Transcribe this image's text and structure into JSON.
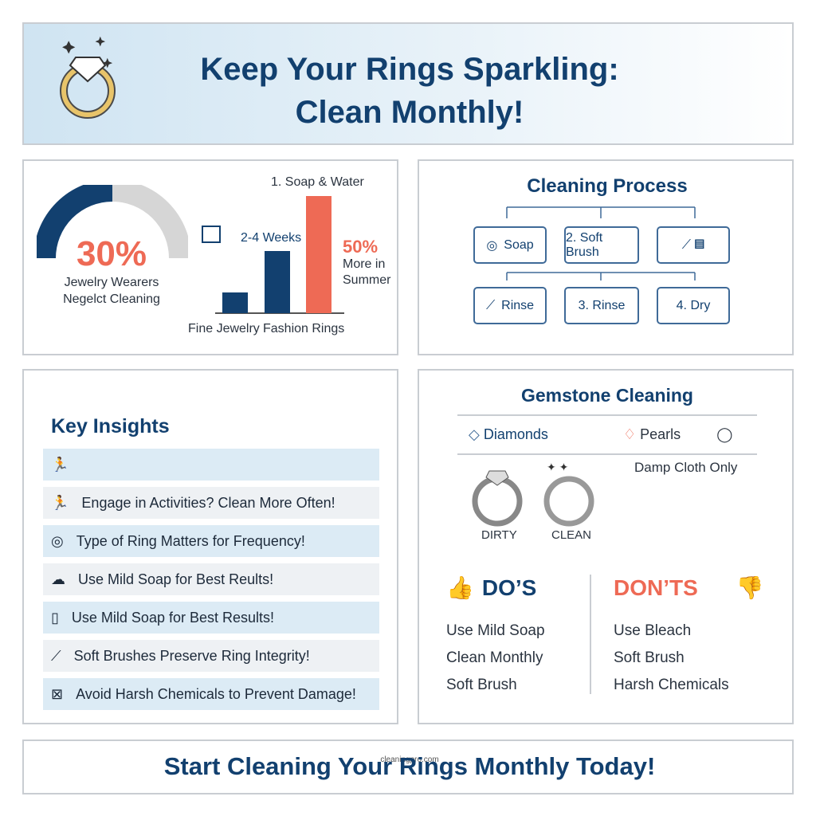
{
  "header": {
    "title_lines": [
      "Keep Your Rings Sparkling:",
      "Clean Monthly!"
    ]
  },
  "stats": {
    "percent": "30%",
    "caption_lines": [
      "Jewelry Wearers",
      "Negelct Cleaning"
    ],
    "bar_top_label": "1. Soap & Water",
    "bar_mid_label": "2-4 Weeks",
    "side_value": "50%",
    "side_caption_lines": [
      "More in",
      "Summer"
    ],
    "categories": [
      "Fine Jewelry",
      "Fashion Rings"
    ]
  },
  "process": {
    "title": "Cleaning Process",
    "row1": [
      "Soap",
      "2. Soft Brush"
    ],
    "row2": [
      "Rinse",
      "3. Rinse",
      "4. Dry"
    ]
  },
  "insights": {
    "title": "Key Insights",
    "items": [
      "Engage in Activities? Clean More Often!",
      "Type of Ring Matters for Frequency!",
      "Use Mild Soap for Best Reults!",
      "Use Mild Soap for Best Results!",
      "Soft Brushes Preserve Ring Integrity!",
      "Avoid Harsh Chemicals to Prevent Damage!"
    ]
  },
  "gemstones": {
    "title": "Gemstone Cleaning",
    "types": [
      "Diamonds",
      "Pearls"
    ],
    "note": "Damp Cloth Only",
    "ring_labels": [
      "DIRTY",
      "CLEAN"
    ]
  },
  "dos": {
    "heading": "DO’S",
    "items": [
      "Use Mild Soap",
      "Clean Monthly",
      "Soft Brush"
    ]
  },
  "donts": {
    "heading": "DON’TS",
    "items": [
      "Use Bleach",
      "Soft Brush",
      "Harsh Chemicals"
    ]
  },
  "footer": {
    "text": "Start Cleaning Your Rings Monthly Today!",
    "watermark": "cleaningpro.com"
  }
}
